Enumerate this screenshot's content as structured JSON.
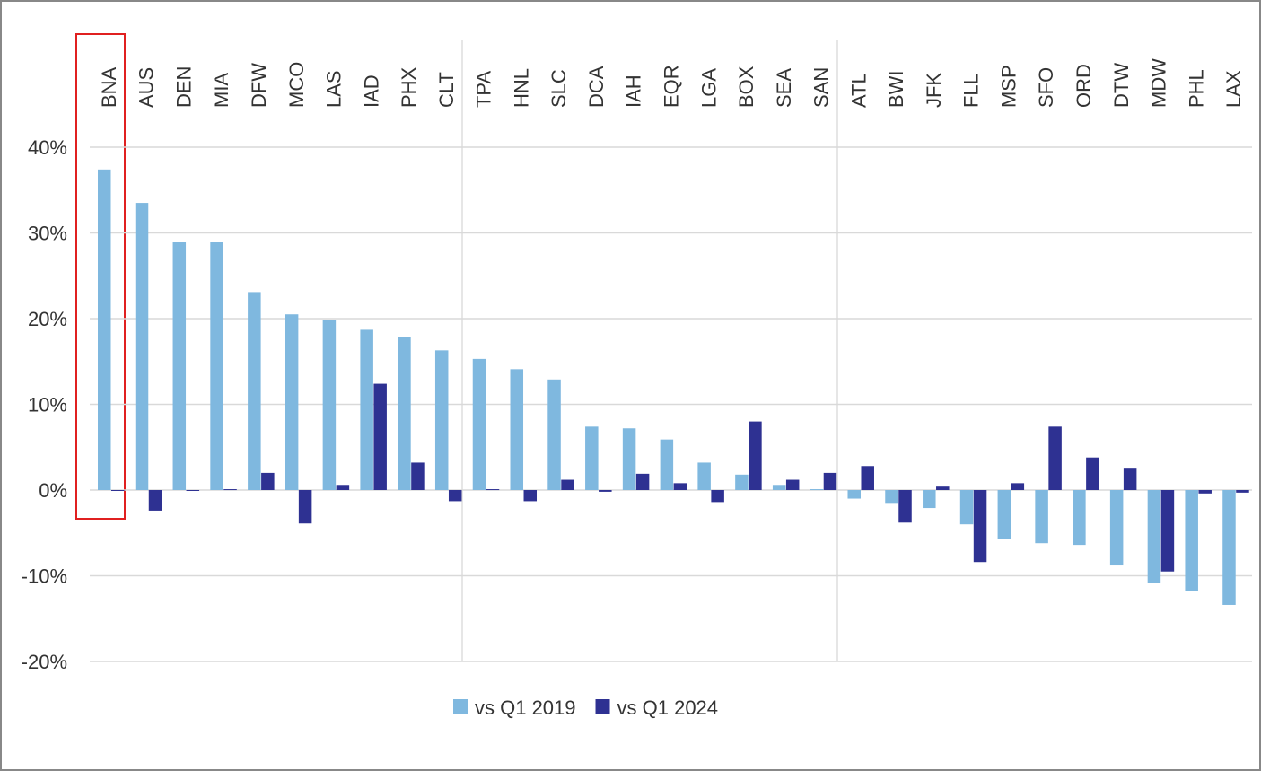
{
  "chart_data": {
    "type": "bar",
    "categories": [
      "BNA",
      "AUS",
      "DEN",
      "MIA",
      "DFW",
      "MCO",
      "LAS",
      "IAD",
      "PHX",
      "CLT",
      "TPA",
      "HNL",
      "SLC",
      "DCA",
      "IAH",
      "EQR",
      "LGA",
      "BOX",
      "SEA",
      "SAN",
      "ATL",
      "BWI",
      "JFK",
      "FLL",
      "MSP",
      "SFO",
      "ORD",
      "DTW",
      "MDW",
      "PHL",
      "LAX"
    ],
    "series": [
      {
        "name": "vs Q1 2019",
        "color": "#7fb8df",
        "values": [
          37.4,
          33.5,
          28.9,
          28.9,
          23.1,
          20.5,
          19.8,
          18.7,
          17.9,
          16.3,
          15.3,
          14.1,
          12.9,
          7.4,
          7.2,
          5.9,
          3.2,
          1.8,
          0.6,
          0.1,
          -1.0,
          -1.5,
          -2.1,
          -4.0,
          -5.7,
          -6.2,
          -6.4,
          -8.8,
          -10.8,
          -11.8,
          -13.4
        ]
      },
      {
        "name": "vs Q1 2024",
        "color": "#2e3192",
        "values": [
          0,
          -2.4,
          -0.1,
          0.1,
          2.0,
          -3.9,
          0.6,
          12.4,
          3.2,
          -1.3,
          0.1,
          -1.3,
          1.2,
          -0.2,
          1.9,
          0.8,
          -1.4,
          8.0,
          1.2,
          2.0,
          2.8,
          -3.8,
          0.4,
          -8.4,
          0.8,
          7.4,
          3.8,
          2.6,
          -9.5,
          -0.4,
          -0.3
        ]
      }
    ],
    "ylim": [
      -20,
      40
    ],
    "yticks": [
      {
        "value": -20,
        "label": "-20%"
      },
      {
        "value": -10,
        "label": "-10%"
      },
      {
        "value": 0,
        "label": "0%"
      },
      {
        "value": 10,
        "label": "10%"
      },
      {
        "value": 20,
        "label": "20%"
      },
      {
        "value": 30,
        "label": "30%"
      },
      {
        "value": 40,
        "label": "40%"
      }
    ],
    "grid": true
  }
}
